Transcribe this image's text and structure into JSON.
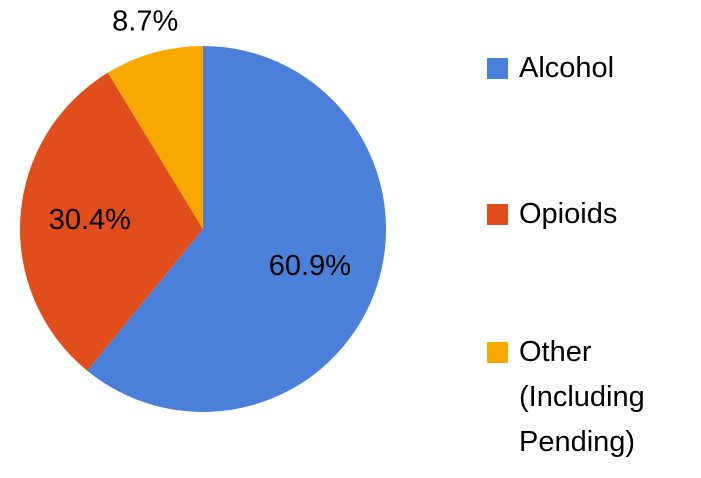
{
  "chart_data": {
    "type": "pie",
    "categories": [
      "Alcohol",
      "Opioids",
      "Other (Including Pending)"
    ],
    "values": [
      60.9,
      30.4,
      8.7
    ],
    "value_labels": [
      "60.9%",
      "30.4%",
      "8.7%"
    ],
    "colors": [
      "#4a80d9",
      "#e24e1b",
      "#f9a800"
    ],
    "legend": "right"
  }
}
